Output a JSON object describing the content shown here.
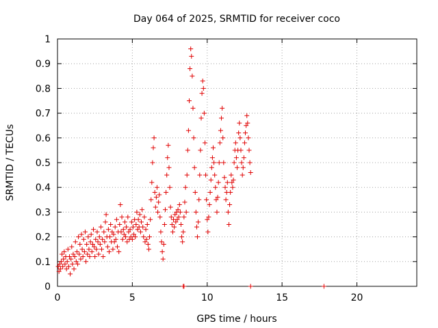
{
  "chart_data": {
    "type": "scatter",
    "title": "Day 064 of 2025, SRMTID for receiver coco",
    "xlabel": "GPS time / hours",
    "ylabel": "SRMTID / TECUs",
    "xlim": [
      0,
      24
    ],
    "ylim": [
      0,
      1
    ],
    "x_ticks": [
      0,
      5,
      10,
      15,
      20
    ],
    "x_tick_labels": [
      "0",
      "5",
      "10",
      "15",
      "20"
    ],
    "y_ticks": [
      0,
      0.1,
      0.2,
      0.3,
      0.4,
      0.5,
      0.6,
      0.7,
      0.8,
      0.9,
      1
    ],
    "y_tick_labels": [
      "0",
      "0.1",
      "0.2",
      "0.3",
      "0.4",
      "0.5",
      "0.6",
      "0.7",
      "0.8",
      "0.9",
      "1"
    ],
    "grid": true,
    "marker": "+",
    "marker_color": "#e00000",
    "series": [
      {
        "name": "SRMTID",
        "points": [
          [
            0.05,
            0.08
          ],
          [
            0.1,
            0.06
          ],
          [
            0.15,
            0.09
          ],
          [
            0.2,
            0.07
          ],
          [
            0.25,
            0.1
          ],
          [
            0.3,
            0.13
          ],
          [
            0.35,
            0.08
          ],
          [
            0.4,
            0.11
          ],
          [
            0.45,
            0.14
          ],
          [
            0.5,
            0.09
          ],
          [
            0.55,
            0.12
          ],
          [
            0.6,
            0.07
          ],
          [
            0.65,
            0.1
          ],
          [
            0.7,
            0.15
          ],
          [
            0.75,
            0.08
          ],
          [
            0.8,
            0.12
          ],
          [
            0.85,
            0.05
          ],
          [
            0.9,
            0.11
          ],
          [
            0.95,
            0.16
          ],
          [
            1.0,
            0.09
          ],
          [
            1.05,
            0.13
          ],
          [
            1.1,
            0.07
          ],
          [
            1.15,
            0.12
          ],
          [
            1.2,
            0.18
          ],
          [
            1.25,
            0.1
          ],
          [
            1.3,
            0.14
          ],
          [
            1.35,
            0.09
          ],
          [
            1.4,
            0.2
          ],
          [
            1.45,
            0.13
          ],
          [
            1.5,
            0.17
          ],
          [
            1.55,
            0.11
          ],
          [
            1.6,
            0.21
          ],
          [
            1.65,
            0.15
          ],
          [
            1.7,
            0.12
          ],
          [
            1.75,
            0.19
          ],
          [
            1.8,
            0.14
          ],
          [
            1.85,
            0.22
          ],
          [
            1.9,
            0.1
          ],
          [
            1.95,
            0.17
          ],
          [
            2.0,
            0.13
          ],
          [
            2.05,
            0.2
          ],
          [
            2.1,
            0.15
          ],
          [
            2.15,
            0.12
          ],
          [
            2.2,
            0.18
          ],
          [
            2.25,
            0.21
          ],
          [
            2.3,
            0.14
          ],
          [
            2.35,
            0.17
          ],
          [
            2.4,
            0.23
          ],
          [
            2.45,
            0.16
          ],
          [
            2.5,
            0.12
          ],
          [
            2.55,
            0.19
          ],
          [
            2.6,
            0.15
          ],
          [
            2.65,
            0.22
          ],
          [
            2.7,
            0.18
          ],
          [
            2.75,
            0.13
          ],
          [
            2.8,
            0.2
          ],
          [
            2.85,
            0.17
          ],
          [
            2.9,
            0.24
          ],
          [
            2.95,
            0.15
          ],
          [
            3.0,
            0.19
          ],
          [
            3.05,
            0.12
          ],
          [
            3.1,
            0.22
          ],
          [
            3.15,
            0.18
          ],
          [
            3.2,
            0.26
          ],
          [
            3.25,
            0.29
          ],
          [
            3.3,
            0.2
          ],
          [
            3.35,
            0.16
          ],
          [
            3.4,
            0.23
          ],
          [
            3.45,
            0.14
          ],
          [
            3.5,
            0.2
          ],
          [
            3.55,
            0.25
          ],
          [
            3.6,
            0.18
          ],
          [
            3.65,
            0.22
          ],
          [
            3.7,
            0.15
          ],
          [
            3.75,
            0.21
          ],
          [
            3.8,
            0.18
          ],
          [
            3.85,
            0.24
          ],
          [
            3.9,
            0.19
          ],
          [
            3.95,
            0.27
          ],
          [
            4.0,
            0.16
          ],
          [
            4.05,
            0.22
          ],
          [
            4.1,
            0.14
          ],
          [
            4.15,
            0.25
          ],
          [
            4.2,
            0.33
          ],
          [
            4.25,
            0.22
          ],
          [
            4.3,
            0.28
          ],
          [
            4.35,
            0.19
          ],
          [
            4.4,
            0.23
          ],
          [
            4.45,
            0.21
          ],
          [
            4.5,
            0.26
          ],
          [
            4.55,
            0.2
          ],
          [
            4.6,
            0.24
          ],
          [
            4.65,
            0.18
          ],
          [
            4.7,
            0.28
          ],
          [
            4.75,
            0.22
          ],
          [
            4.8,
            0.19
          ],
          [
            4.85,
            0.23
          ],
          [
            4.9,
            0.2
          ],
          [
            4.95,
            0.26
          ],
          [
            5.0,
            0.19
          ],
          [
            5.05,
            0.24
          ],
          [
            5.1,
            0.21
          ],
          [
            5.15,
            0.27
          ],
          [
            5.2,
            0.2
          ],
          [
            5.25,
            0.25
          ],
          [
            5.3,
            0.3
          ],
          [
            5.35,
            0.23
          ],
          [
            5.4,
            0.27
          ],
          [
            5.45,
            0.24
          ],
          [
            5.5,
            0.29
          ],
          [
            5.55,
            0.22
          ],
          [
            5.6,
            0.26
          ],
          [
            5.65,
            0.31
          ],
          [
            5.7,
            0.24
          ],
          [
            5.75,
            0.2
          ],
          [
            5.8,
            0.28
          ],
          [
            5.85,
            0.18
          ],
          [
            5.9,
            0.23
          ],
          [
            5.95,
            0.19
          ],
          [
            6.0,
            0.25
          ],
          [
            6.05,
            0.17
          ],
          [
            6.1,
            0.15
          ],
          [
            6.15,
            0.2
          ],
          [
            6.2,
            0.27
          ],
          [
            6.25,
            0.35
          ],
          [
            6.3,
            0.42
          ],
          [
            6.35,
            0.5
          ],
          [
            6.4,
            0.56
          ],
          [
            6.45,
            0.6
          ],
          [
            6.5,
            0.38
          ],
          [
            6.55,
            0.32
          ],
          [
            6.6,
            0.36
          ],
          [
            6.65,
            0.4
          ],
          [
            6.7,
            0.3
          ],
          [
            6.75,
            0.34
          ],
          [
            6.8,
            0.37
          ],
          [
            6.85,
            0.28
          ],
          [
            6.9,
            0.22
          ],
          [
            6.95,
            0.18
          ],
          [
            7.0,
            0.14
          ],
          [
            7.05,
            0.11
          ],
          [
            7.1,
            0.17
          ],
          [
            7.15,
            0.25
          ],
          [
            7.2,
            0.31
          ],
          [
            7.25,
            0.38
          ],
          [
            7.3,
            0.45
          ],
          [
            7.35,
            0.52
          ],
          [
            7.4,
            0.57
          ],
          [
            7.45,
            0.48
          ],
          [
            7.5,
            0.4
          ],
          [
            7.55,
            0.32
          ],
          [
            7.6,
            0.28
          ],
          [
            7.65,
            0.25
          ],
          [
            7.7,
            0.22
          ],
          [
            7.75,
            0.27
          ],
          [
            7.8,
            0.24
          ],
          [
            7.85,
            0.29
          ],
          [
            7.9,
            0.26
          ],
          [
            7.95,
            0.3
          ],
          [
            8.0,
            0.27
          ],
          [
            8.05,
            0.31
          ],
          [
            8.1,
            0.28
          ],
          [
            8.15,
            0.33
          ],
          [
            8.2,
            0.3
          ],
          [
            8.25,
            0.25
          ],
          [
            8.3,
            0.2
          ],
          [
            8.35,
            0.18
          ],
          [
            8.4,
            0.22
          ],
          [
            8.45,
            0.28
          ],
          [
            8.5,
            0.34
          ],
          [
            8.55,
            0.4
          ],
          [
            8.6,
            0.3
          ],
          [
            8.65,
            0.45
          ],
          [
            8.7,
            0.55
          ],
          [
            8.75,
            0.63
          ],
          [
            8.8,
            0.75
          ],
          [
            8.85,
            0.88
          ],
          [
            8.9,
            0.96
          ],
          [
            8.95,
            0.93
          ],
          [
            9.0,
            0.85
          ],
          [
            9.05,
            0.72
          ],
          [
            9.1,
            0.6
          ],
          [
            9.15,
            0.48
          ],
          [
            9.2,
            0.38
          ],
          [
            9.25,
            0.3
          ],
          [
            9.3,
            0.24
          ],
          [
            9.35,
            0.2
          ],
          [
            9.4,
            0.26
          ],
          [
            9.45,
            0.35
          ],
          [
            9.5,
            0.45
          ],
          [
            9.55,
            0.55
          ],
          [
            9.6,
            0.68
          ],
          [
            9.65,
            0.78
          ],
          [
            9.7,
            0.83
          ],
          [
            9.75,
            0.8
          ],
          [
            9.8,
            0.7
          ],
          [
            9.85,
            0.58
          ],
          [
            9.9,
            0.45
          ],
          [
            9.95,
            0.35
          ],
          [
            10.0,
            0.27
          ],
          [
            10.05,
            0.22
          ],
          [
            10.1,
            0.28
          ],
          [
            10.15,
            0.33
          ],
          [
            10.2,
            0.38
          ],
          [
            10.25,
            0.43
          ],
          [
            10.3,
            0.48
          ],
          [
            10.35,
            0.52
          ],
          [
            10.4,
            0.56
          ],
          [
            10.45,
            0.5
          ],
          [
            10.5,
            0.45
          ],
          [
            10.55,
            0.4
          ],
          [
            10.6,
            0.35
          ],
          [
            10.65,
            0.3
          ],
          [
            10.7,
            0.36
          ],
          [
            10.75,
            0.42
          ],
          [
            10.8,
            0.5
          ],
          [
            10.85,
            0.58
          ],
          [
            10.9,
            0.63
          ],
          [
            10.95,
            0.68
          ],
          [
            11.0,
            0.72
          ],
          [
            11.05,
            0.6
          ],
          [
            11.1,
            0.5
          ],
          [
            11.15,
            0.44
          ],
          [
            11.2,
            0.4
          ],
          [
            11.25,
            0.35
          ],
          [
            11.3,
            0.38
          ],
          [
            11.35,
            0.42
          ],
          [
            11.4,
            0.3
          ],
          [
            11.45,
            0.25
          ],
          [
            11.5,
            0.33
          ],
          [
            11.55,
            0.38
          ],
          [
            11.6,
            0.45
          ],
          [
            11.65,
            0.42
          ],
          [
            11.7,
            0.4
          ],
          [
            11.75,
            0.43
          ],
          [
            11.8,
            0.5
          ],
          [
            11.85,
            0.55
          ],
          [
            11.9,
            0.58
          ],
          [
            11.95,
            0.52
          ],
          [
            12.0,
            0.48
          ],
          [
            12.05,
            0.55
          ],
          [
            12.1,
            0.62
          ],
          [
            12.15,
            0.66
          ],
          [
            12.2,
            0.6
          ],
          [
            12.25,
            0.55
          ],
          [
            12.3,
            0.5
          ],
          [
            12.35,
            0.45
          ],
          [
            12.4,
            0.48
          ],
          [
            12.45,
            0.52
          ],
          [
            12.5,
            0.58
          ],
          [
            12.55,
            0.62
          ],
          [
            12.6,
            0.65
          ],
          [
            12.65,
            0.69
          ],
          [
            12.7,
            0.66
          ],
          [
            12.75,
            0.6
          ],
          [
            12.8,
            0.55
          ],
          [
            12.85,
            0.5
          ],
          [
            12.9,
            0.46
          ],
          [
            8.4,
            0
          ],
          [
            8.45,
            0
          ],
          [
            12.9,
            0
          ],
          [
            17.8,
            0
          ]
        ]
      }
    ]
  }
}
